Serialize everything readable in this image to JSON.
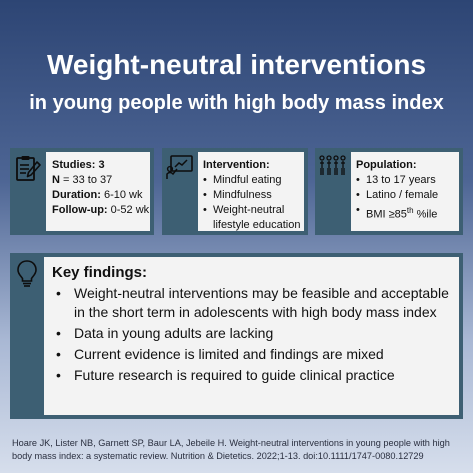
{
  "title": {
    "main": "Weight-neutral interventions",
    "sub": "in young people with high body mass index"
  },
  "studies": {
    "icon": "clipboard-pencil-icon",
    "rows": [
      {
        "label": "Studies:",
        "value": "3"
      },
      {
        "label": "N",
        "value": "= 33 to 37"
      },
      {
        "label": "Duration:",
        "value": "6-10 wk"
      },
      {
        "label": "Follow-up:",
        "value": "0-52 wk"
      }
    ]
  },
  "intervention": {
    "icon": "presentation-board-icon",
    "heading": "Intervention:",
    "items": [
      "Mindful eating",
      "Mindfulness",
      "Weight-neutral",
      "lifestyle education"
    ]
  },
  "population": {
    "icon": "people-group-icon",
    "heading": "Population:",
    "items": [
      "13 to 17 years",
      "Latino / female"
    ],
    "bmi": {
      "prefix": "BMI ≥85",
      "sup": "th",
      "suffix": " %ile"
    }
  },
  "findings": {
    "icon": "lightbulb-icon",
    "heading": "Key findings:",
    "items": [
      "Weight-neutral interventions may be feasible and acceptable in the short term in adolescents with high body mass index",
      "Data in young adults are lacking",
      "Current evidence is limited and findings are mixed",
      "Future research is required to guide clinical practice"
    ]
  },
  "citation": "Hoare JK, Lister NB, Garnett SP, Baur LA, Jebeile H. Weight-neutral interventions in young people with high body mass index: a systematic review. Nutrition & Dietetics. 2022;1-13. doi:10.1111/1747-0080.12729",
  "colors": {
    "card_border": "#3d5f73",
    "content_bg": "#f3f3f3",
    "title_text": "#ffffff"
  }
}
